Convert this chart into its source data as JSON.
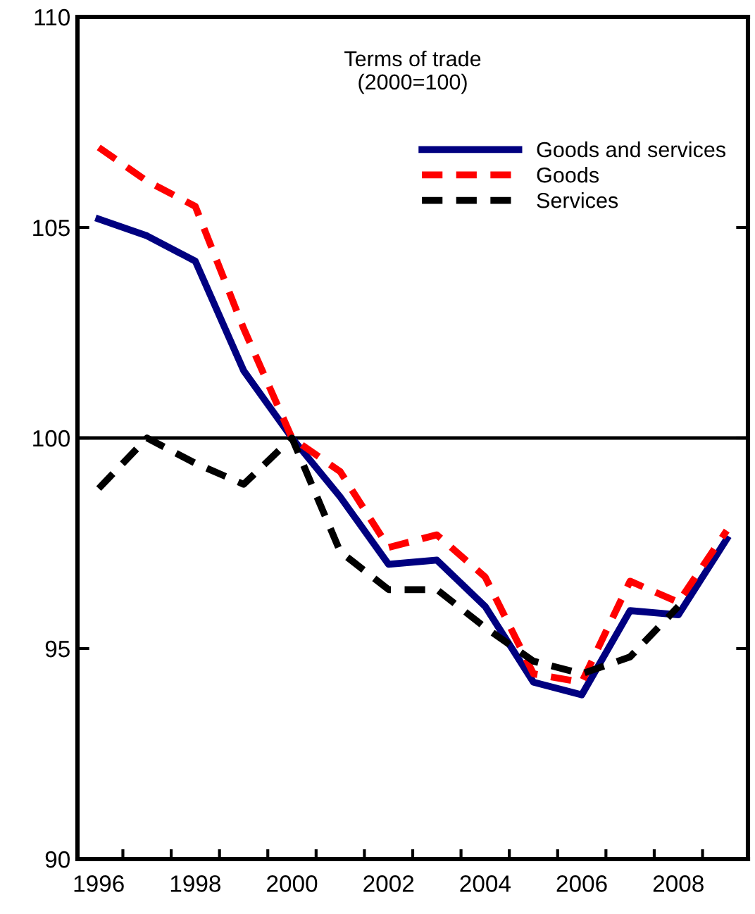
{
  "chart_data": {
    "type": "line",
    "title": "Terms of trade\n(2000=100)",
    "categories": [
      "1996",
      null,
      "1998",
      null,
      "2000",
      null,
      "2002",
      null,
      "2004",
      null,
      "2006",
      null,
      "2008",
      null
    ],
    "series": [
      {
        "name": "Goods and services",
        "color": "#000080",
        "line_style": "solid",
        "values": [
          105.2,
          104.8,
          104.2,
          101.6,
          100.0,
          98.6,
          97.0,
          97.1,
          96.0,
          94.2,
          93.9,
          95.9,
          95.8,
          97.6
        ]
      },
      {
        "name": "Goods",
        "color": "#ff0000",
        "line_style": "dashed",
        "values": [
          106.9,
          106.1,
          105.5,
          102.6,
          100.0,
          99.2,
          97.4,
          97.7,
          96.7,
          94.4,
          94.2,
          96.6,
          96.1,
          97.8
        ]
      },
      {
        "name": "Services",
        "color": "#000000",
        "line_style": "dashed",
        "values": [
          98.8,
          100.0,
          99.4,
          98.9,
          100.0,
          97.3,
          96.4,
          96.4,
          95.5,
          94.7,
          94.4,
          94.8,
          96.0,
          null
        ]
      }
    ],
    "ylim": [
      90,
      110
    ],
    "yticks": [
      90,
      95,
      100,
      105,
      110
    ],
    "ref_lines": [
      {
        "axis": "y",
        "value": 100,
        "color": "#000000",
        "line_style": "solid"
      }
    ],
    "grid": false,
    "legend": "top right",
    "marker": "none"
  }
}
